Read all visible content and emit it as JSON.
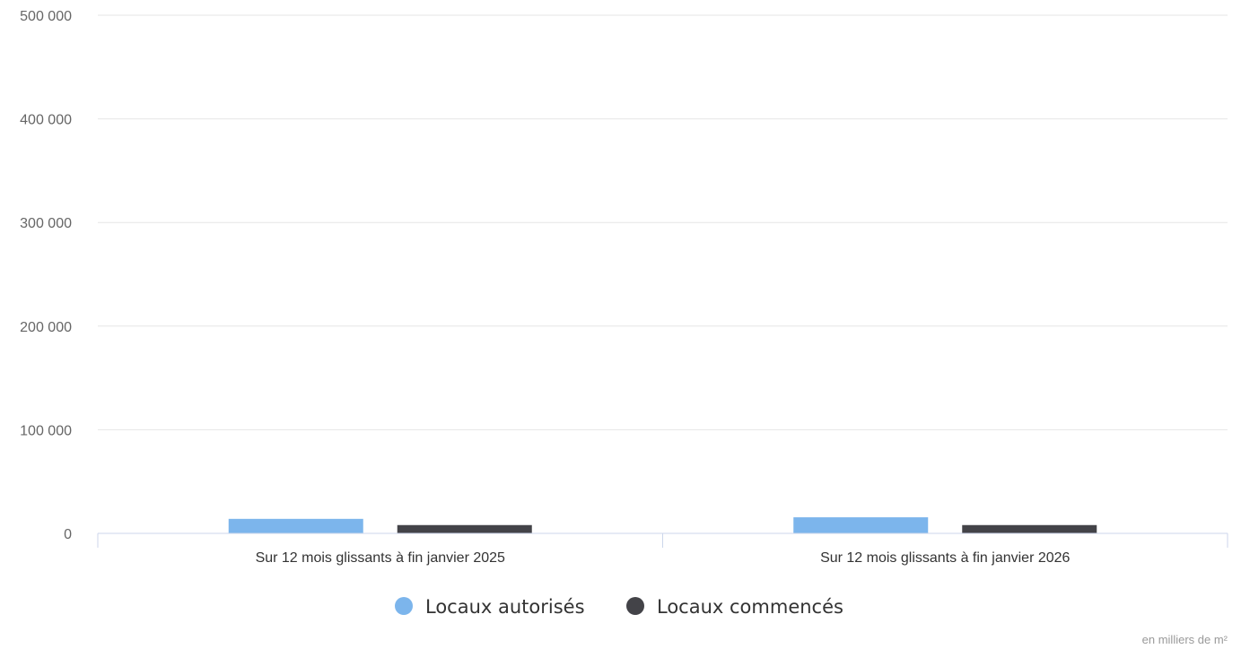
{
  "chart_data": {
    "type": "bar",
    "title": "",
    "xlabel": "",
    "ylabel": "",
    "categories": [
      "Sur 12 mois glissants à fin janvier 2025",
      "Sur 12 mois glissants à fin janvier 2026"
    ],
    "series": [
      {
        "name": "Locaux autorisés",
        "color": "#7cb5ec",
        "values": [
          14000,
          15500
        ]
      },
      {
        "name": "Locaux commencés",
        "color": "#434348",
        "values": [
          8000,
          8000
        ]
      }
    ],
    "ylim": [
      0,
      500000
    ],
    "yticks": [
      0,
      100000,
      200000,
      300000,
      400000,
      500000
    ],
    "ytick_labels": [
      "0",
      "100 000",
      "200 000",
      "300 000",
      "400 000",
      "500 000"
    ],
    "grid": true,
    "legend_position": "bottom-center",
    "units_note": "en milliers de m²"
  }
}
